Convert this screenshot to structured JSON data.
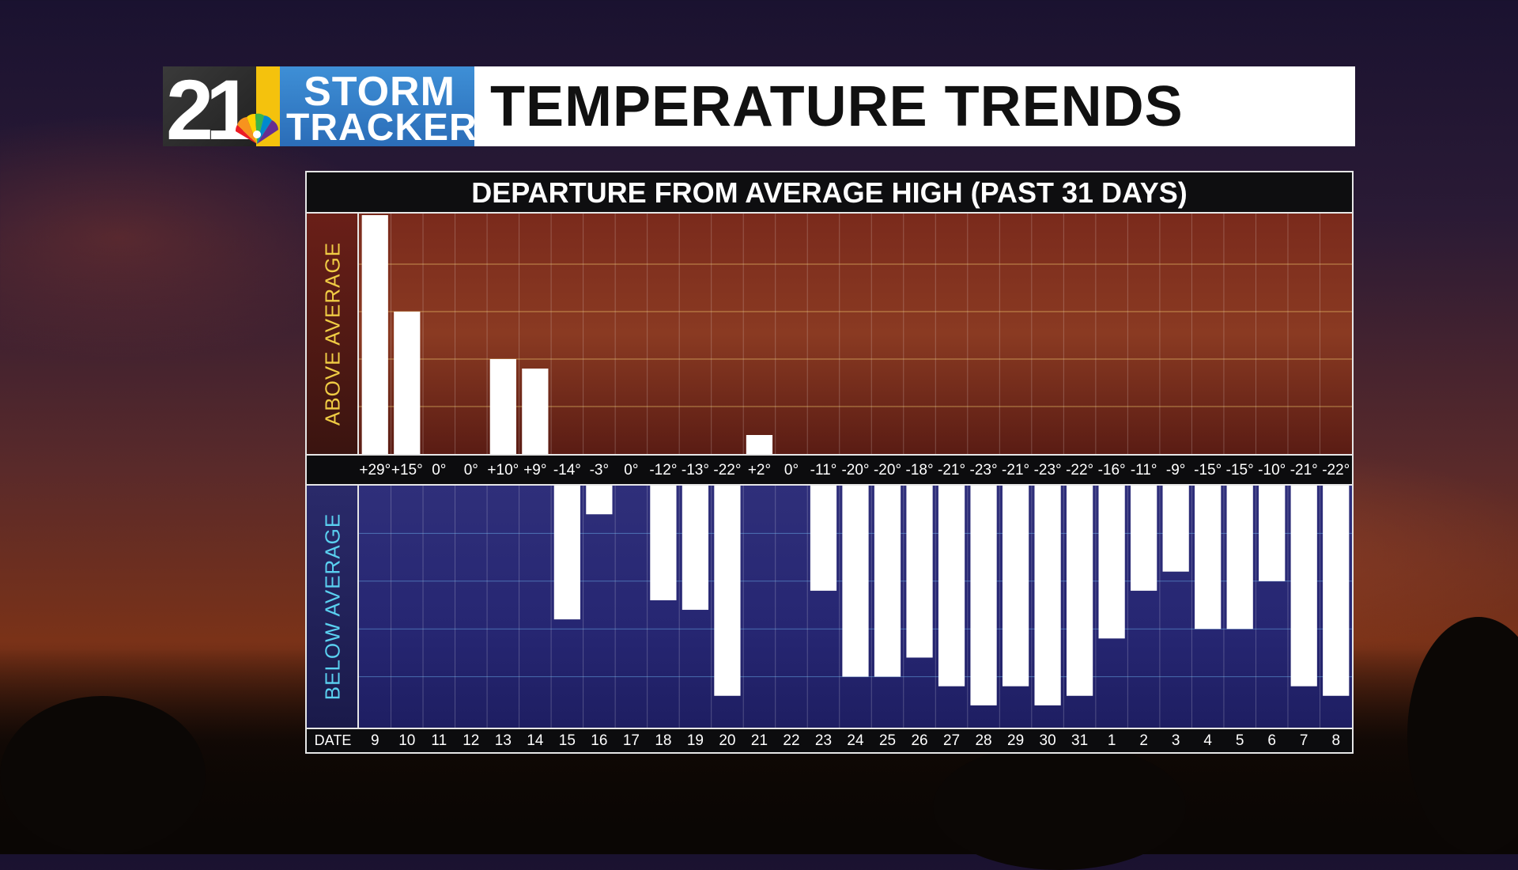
{
  "header": {
    "logo": {
      "number": "21",
      "line1": "STORM",
      "line2": "TRACKER",
      "icon": "peacock-icon"
    },
    "title": "TEMPERATURE TRENDS"
  },
  "colors": {
    "above_bg": "#7a2a1c",
    "below_bg": "#2f2f7a",
    "bar": "#ffffff",
    "above_label": "#f0cc44",
    "below_label": "#5ad0f0"
  },
  "chart_data": {
    "type": "bar",
    "title": "DEPARTURE FROM AVERAGE HIGH (PAST 31 DAYS)",
    "upper_label": "ABOVE AVERAGE",
    "lower_label": "BELOW AVERAGE",
    "xlabel": "DATE",
    "categories": [
      "9",
      "10",
      "11",
      "12",
      "13",
      "14",
      "15",
      "16",
      "17",
      "18",
      "19",
      "20",
      "21",
      "22",
      "23",
      "24",
      "25",
      "26",
      "27",
      "28",
      "29",
      "30",
      "31",
      "1",
      "2",
      "3",
      "4",
      "5",
      "6",
      "7",
      "8"
    ],
    "values": [
      29,
      15,
      0,
      0,
      10,
      9,
      -14,
      -3,
      0,
      -12,
      -13,
      -22,
      2,
      0,
      -11,
      -20,
      -20,
      -18,
      -21,
      -23,
      -21,
      -23,
      -22,
      -16,
      -11,
      -9,
      -15,
      -15,
      -10,
      -21,
      -22
    ],
    "value_labels": [
      "+29°",
      "+15°",
      "0°",
      "0°",
      "+10°",
      "+9°",
      "-14°",
      "-3°",
      "0°",
      "-12°",
      "-13°",
      "-22°",
      "+2°",
      "0°",
      "-11°",
      "-20°",
      "-20°",
      "-18°",
      "-21°",
      "-23°",
      "-21°",
      "-23°",
      "-22°",
      "-16°",
      "-11°",
      "-9°",
      "-15°",
      "-15°",
      "-10°",
      "-21°",
      "-22°"
    ],
    "ylim_above": [
      0,
      25
    ],
    "ylim_below": [
      -25,
      0
    ],
    "grid": true
  }
}
